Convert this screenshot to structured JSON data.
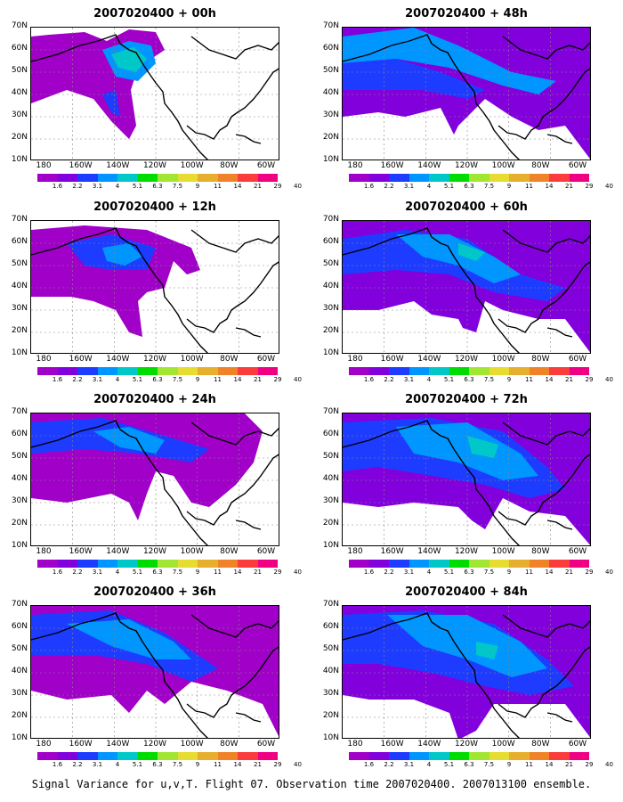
{
  "caption": "Signal Variance for u,v,T. Flight 07. Observation time 2007020400. 2007013100 ensemble.",
  "lat_labels": [
    "70N",
    "60N",
    "50N",
    "40N",
    "30N",
    "20N",
    "10N"
  ],
  "lon_labels": [
    "180",
    "160W",
    "140W",
    "120W",
    "100W",
    "80W",
    "60W"
  ],
  "colorbar": {
    "colors": [
      "#a000c8",
      "#8200dc",
      "#1e3cff",
      "#0096ff",
      "#00c8c8",
      "#00dc00",
      "#a0e632",
      "#e6dc32",
      "#e6af2d",
      "#f08228",
      "#fa3c3c",
      "#f00082"
    ],
    "labels": [
      "1.6",
      "2.2",
      "3.1",
      "4",
      "5.1",
      "6.3",
      "7.5",
      "9",
      "11",
      "14",
      "21",
      "29",
      "40"
    ]
  },
  "panels": [
    {
      "title": "2007020400 + 00h"
    },
    {
      "title": "2007020400 + 48h"
    },
    {
      "title": "2007020400 + 12h"
    },
    {
      "title": "2007020400 + 60h"
    },
    {
      "title": "2007020400 + 24h"
    },
    {
      "title": "2007020400 + 72h"
    },
    {
      "title": "2007020400 + 36h"
    },
    {
      "title": "2007020400 + 84h"
    }
  ]
}
